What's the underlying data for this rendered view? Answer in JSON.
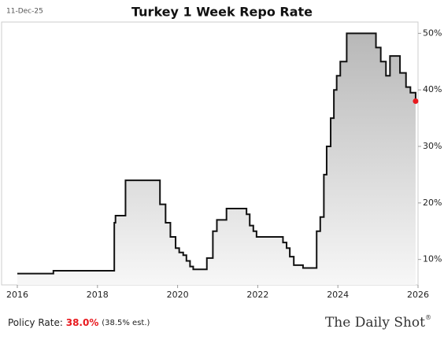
{
  "chart_data": {
    "type": "step-line",
    "title": "Turkey 1 Week Repo Rate",
    "date": "11-Dec-25",
    "x": [
      2016.0,
      2016.9,
      2018.42,
      2018.45,
      2018.7,
      2019.56,
      2019.7,
      2019.82,
      2019.95,
      2020.04,
      2020.14,
      2020.22,
      2020.31,
      2020.39,
      2020.73,
      2020.88,
      2020.98,
      2021.22,
      2021.72,
      2021.8,
      2021.89,
      2021.97,
      2022.63,
      2022.72,
      2022.8,
      2022.9,
      2023.13,
      2023.47,
      2023.56,
      2023.65,
      2023.72,
      2023.82,
      2023.9,
      2023.97,
      2024.06,
      2024.22,
      2024.95,
      2025.07,
      2025.2,
      2025.3,
      2025.55,
      2025.7,
      2025.81,
      2025.94
    ],
    "series": [
      {
        "name": "1 Week Repo Rate",
        "color": "#111111",
        "end_marker_color": "#e8191e",
        "values": [
          7.5,
          8,
          16.5,
          17.75,
          24,
          19.75,
          16.5,
          14,
          12,
          11.25,
          10.75,
          9.75,
          8.75,
          8.25,
          10.25,
          15,
          17,
          19,
          18,
          16,
          15,
          14,
          13,
          12,
          10.5,
          9,
          8.5,
          15,
          17.5,
          25,
          30,
          35,
          40,
          42.5,
          45,
          50,
          47.5,
          45,
          42.5,
          46,
          43,
          40.5,
          39.5,
          38
        ]
      }
    ],
    "xlim": [
      2016,
      2026
    ],
    "xticks": [
      2016,
      2018,
      2020,
      2022,
      2024,
      2026
    ],
    "ylim": [
      5.5,
      52
    ],
    "yticks": [
      {
        "value": 10,
        "label": "10%"
      },
      {
        "value": 20,
        "label": "20%"
      },
      {
        "value": 30,
        "label": "30%"
      },
      {
        "value": 40,
        "label": "40%"
      },
      {
        "value": 50,
        "label": "50%"
      }
    ],
    "y_axis_side": "right",
    "grid": false
  },
  "footer": {
    "label": "Policy Rate:",
    "value": "38.0%",
    "estimate": "(38.5% est.)",
    "brand": "The Daily Shot",
    "brand_mark": "®"
  }
}
